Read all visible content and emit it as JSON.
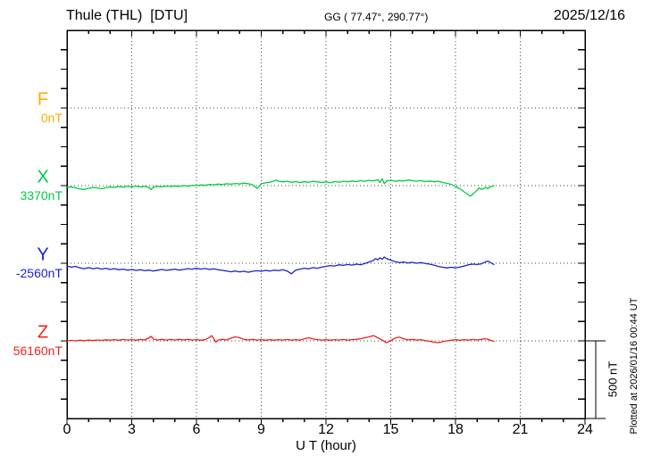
{
  "header": {
    "title": "Thule (THL)  [DTU]",
    "coordinates": "GG ( 77.47°, 290.77°)",
    "date": "2025/12/16"
  },
  "axis": {
    "xlabel": "U T (hour)",
    "x_major_ticks": [
      "0",
      "3",
      "6",
      "9",
      "12",
      "15",
      "18",
      "21",
      "24"
    ]
  },
  "scale_bar": {
    "label": "500 nT"
  },
  "plotted_note": "Plotted at 2026/01/16 00:44 UT",
  "chart_data": {
    "type": "line",
    "title": "Thule (THL) [DTU] magnetogram for 2025/12/16",
    "xlabel": "U T (hour)",
    "xlim": [
      0,
      24
    ],
    "x_major_tick_step": 3,
    "x_minor_tick_step": 1,
    "grid": "dotted vertical lines every 3 h; dotted horizontal line at each component baseline",
    "scale_bar_nT": 500,
    "nT_per_division": 125,
    "data_end_hour": 19.8,
    "components": [
      {
        "name": "F",
        "baseline_label": "0nT",
        "baseline_nT": 0,
        "color": "#ffaa00",
        "points": []
      },
      {
        "name": "X",
        "baseline_label": "3370nT",
        "baseline_nT": 3370,
        "color": "#00cc44",
        "points": [
          [
            0,
            -8
          ],
          [
            0.2,
            -10
          ],
          [
            0.4,
            -14
          ],
          [
            0.6,
            -22
          ],
          [
            0.8,
            -25
          ],
          [
            1,
            -18
          ],
          [
            1.2,
            -12
          ],
          [
            1.4,
            -15
          ],
          [
            1.6,
            -20
          ],
          [
            1.8,
            -14
          ],
          [
            2,
            -8
          ],
          [
            2.2,
            -12
          ],
          [
            2.4,
            -6
          ],
          [
            2.6,
            -10
          ],
          [
            2.8,
            -4
          ],
          [
            3,
            -8
          ],
          [
            3.2,
            -3
          ],
          [
            3.4,
            -9
          ],
          [
            3.6,
            -5
          ],
          [
            3.8,
            -12
          ],
          [
            3.9,
            -26
          ],
          [
            4,
            -10
          ],
          [
            4.2,
            -5
          ],
          [
            4.4,
            -8
          ],
          [
            4.6,
            -3
          ],
          [
            4.8,
            -6
          ],
          [
            5,
            -2
          ],
          [
            5.2,
            -6
          ],
          [
            5.4,
            0
          ],
          [
            5.6,
            -4
          ],
          [
            5.8,
            2
          ],
          [
            6,
            0
          ],
          [
            6.2,
            4
          ],
          [
            6.4,
            2
          ],
          [
            6.6,
            8
          ],
          [
            6.8,
            5
          ],
          [
            7,
            10
          ],
          [
            7.2,
            7
          ],
          [
            7.4,
            12
          ],
          [
            7.6,
            9
          ],
          [
            7.8,
            14
          ],
          [
            8,
            11
          ],
          [
            8.2,
            16
          ],
          [
            8.4,
            12
          ],
          [
            8.6,
            6
          ],
          [
            8.8,
            -18
          ],
          [
            8.9,
            -5
          ],
          [
            9,
            12
          ],
          [
            9.2,
            18
          ],
          [
            9.4,
            22
          ],
          [
            9.6,
            30
          ],
          [
            9.7,
            36
          ],
          [
            9.8,
            28
          ],
          [
            10,
            24
          ],
          [
            10.2,
            28
          ],
          [
            10.4,
            22
          ],
          [
            10.6,
            26
          ],
          [
            10.8,
            20
          ],
          [
            11,
            25
          ],
          [
            11.2,
            22
          ],
          [
            11.4,
            28
          ],
          [
            11.6,
            24
          ],
          [
            11.8,
            20
          ],
          [
            12,
            24
          ],
          [
            12.2,
            18
          ],
          [
            12.4,
            26
          ],
          [
            12.6,
            22
          ],
          [
            12.8,
            28
          ],
          [
            13,
            25
          ],
          [
            13.2,
            30
          ],
          [
            13.4,
            26
          ],
          [
            13.6,
            32
          ],
          [
            13.8,
            28
          ],
          [
            14,
            34
          ],
          [
            14.2,
            30
          ],
          [
            14.4,
            38
          ],
          [
            14.5,
            20
          ],
          [
            14.6,
            44
          ],
          [
            14.7,
            12
          ],
          [
            14.8,
            30
          ],
          [
            15,
            35
          ],
          [
            15.2,
            28
          ],
          [
            15.4,
            33
          ],
          [
            15.6,
            30
          ],
          [
            15.8,
            36
          ],
          [
            16,
            32
          ],
          [
            16.2,
            28
          ],
          [
            16.4,
            32
          ],
          [
            16.6,
            26
          ],
          [
            16.8,
            30
          ],
          [
            17,
            25
          ],
          [
            17.2,
            28
          ],
          [
            17.4,
            20
          ],
          [
            17.6,
            15
          ],
          [
            17.8,
            8
          ],
          [
            18,
            -5
          ],
          [
            18.2,
            -20
          ],
          [
            18.4,
            -40
          ],
          [
            18.6,
            -60
          ],
          [
            18.7,
            -68
          ],
          [
            18.8,
            -55
          ],
          [
            19,
            -30
          ],
          [
            19.1,
            -15
          ],
          [
            19.2,
            -25
          ],
          [
            19.4,
            -12
          ],
          [
            19.5,
            -20
          ],
          [
            19.6,
            -8
          ],
          [
            19.8,
            -2
          ]
        ]
      },
      {
        "name": "Y",
        "baseline_label": "-2560nT",
        "baseline_nT": -2560,
        "color": "#2222cc",
        "points": [
          [
            0,
            -18
          ],
          [
            0.2,
            -25
          ],
          [
            0.4,
            -20
          ],
          [
            0.6,
            -30
          ],
          [
            0.8,
            -35
          ],
          [
            1,
            -28
          ],
          [
            1.2,
            -36
          ],
          [
            1.4,
            -30
          ],
          [
            1.6,
            -38
          ],
          [
            1.8,
            -32
          ],
          [
            2,
            -40
          ],
          [
            2.2,
            -35
          ],
          [
            2.4,
            -42
          ],
          [
            2.6,
            -38
          ],
          [
            2.8,
            -45
          ],
          [
            3,
            -40
          ],
          [
            3.2,
            -46
          ],
          [
            3.4,
            -42
          ],
          [
            3.6,
            -48
          ],
          [
            3.8,
            -44
          ],
          [
            4,
            -50
          ],
          [
            4.2,
            -45
          ],
          [
            4.4,
            -40
          ],
          [
            4.6,
            -46
          ],
          [
            4.8,
            -42
          ],
          [
            5,
            -38
          ],
          [
            5.2,
            -44
          ],
          [
            5.4,
            -40
          ],
          [
            5.6,
            -35
          ],
          [
            5.8,
            -38
          ],
          [
            6,
            -33
          ],
          [
            6.2,
            -38
          ],
          [
            6.4,
            -34
          ],
          [
            6.6,
            -40
          ],
          [
            6.8,
            -36
          ],
          [
            7,
            -42
          ],
          [
            7.2,
            -46
          ],
          [
            7.4,
            -50
          ],
          [
            7.6,
            -55
          ],
          [
            7.8,
            -50
          ],
          [
            8,
            -56
          ],
          [
            8.2,
            -52
          ],
          [
            8.4,
            -58
          ],
          [
            8.6,
            -52
          ],
          [
            8.8,
            -48
          ],
          [
            9,
            -52
          ],
          [
            9.2,
            -46
          ],
          [
            9.4,
            -50
          ],
          [
            9.6,
            -44
          ],
          [
            9.8,
            -48
          ],
          [
            10,
            -42
          ],
          [
            10.2,
            -50
          ],
          [
            10.4,
            -68
          ],
          [
            10.5,
            -55
          ],
          [
            10.6,
            -45
          ],
          [
            10.8,
            -38
          ],
          [
            11,
            -32
          ],
          [
            11.2,
            -36
          ],
          [
            11.4,
            -28
          ],
          [
            11.6,
            -32
          ],
          [
            11.8,
            -25
          ],
          [
            12,
            -20
          ],
          [
            12.2,
            -15
          ],
          [
            12.4,
            -18
          ],
          [
            12.6,
            -10
          ],
          [
            12.8,
            -14
          ],
          [
            13,
            -8
          ],
          [
            13.2,
            -12
          ],
          [
            13.4,
            -6
          ],
          [
            13.6,
            -10
          ],
          [
            13.8,
            -2
          ],
          [
            14,
            8
          ],
          [
            14.2,
            18
          ],
          [
            14.3,
            30
          ],
          [
            14.4,
            22
          ],
          [
            14.5,
            35
          ],
          [
            14.6,
            25
          ],
          [
            14.7,
            40
          ],
          [
            14.8,
            30
          ],
          [
            15,
            20
          ],
          [
            15.2,
            10
          ],
          [
            15.4,
            4
          ],
          [
            15.6,
            8
          ],
          [
            15.8,
            2
          ],
          [
            16,
            6
          ],
          [
            16.2,
            0
          ],
          [
            16.4,
            4
          ],
          [
            16.6,
            -2
          ],
          [
            16.8,
            -6
          ],
          [
            17,
            -12
          ],
          [
            17.2,
            -20
          ],
          [
            17.4,
            -26
          ],
          [
            17.6,
            -30
          ],
          [
            17.8,
            -26
          ],
          [
            18,
            -30
          ],
          [
            18.2,
            -24
          ],
          [
            18.4,
            -18
          ],
          [
            18.6,
            -10
          ],
          [
            18.8,
            -6
          ],
          [
            19,
            -8
          ],
          [
            19.2,
            -4
          ],
          [
            19.4,
            10
          ],
          [
            19.5,
            14
          ],
          [
            19.6,
            6
          ],
          [
            19.8,
            -10
          ]
        ]
      },
      {
        "name": "Z",
        "baseline_label": "56160nT",
        "baseline_nT": 56160,
        "color": "#ee2222",
        "points": [
          [
            0,
            0
          ],
          [
            0.2,
            3
          ],
          [
            0.4,
            0
          ],
          [
            0.6,
            4
          ],
          [
            0.8,
            1
          ],
          [
            1,
            5
          ],
          [
            1.2,
            2
          ],
          [
            1.4,
            6
          ],
          [
            1.6,
            3
          ],
          [
            1.8,
            7
          ],
          [
            2,
            4
          ],
          [
            2.2,
            8
          ],
          [
            2.4,
            4
          ],
          [
            2.6,
            9
          ],
          [
            2.8,
            5
          ],
          [
            3,
            8
          ],
          [
            3.2,
            4
          ],
          [
            3.4,
            9
          ],
          [
            3.6,
            6
          ],
          [
            3.8,
            20
          ],
          [
            3.9,
            28
          ],
          [
            4,
            12
          ],
          [
            4.2,
            6
          ],
          [
            4.4,
            10
          ],
          [
            4.6,
            5
          ],
          [
            4.8,
            9
          ],
          [
            5,
            5
          ],
          [
            5.2,
            10
          ],
          [
            5.4,
            6
          ],
          [
            5.6,
            10
          ],
          [
            5.8,
            5
          ],
          [
            6,
            8
          ],
          [
            6.2,
            4
          ],
          [
            6.4,
            8
          ],
          [
            6.6,
            22
          ],
          [
            6.7,
            34
          ],
          [
            6.8,
            15
          ],
          [
            6.9,
            -8
          ],
          [
            7,
            5
          ],
          [
            7.2,
            10
          ],
          [
            7.4,
            6
          ],
          [
            7.6,
            18
          ],
          [
            7.8,
            26
          ],
          [
            8,
            20
          ],
          [
            8.2,
            10
          ],
          [
            8.4,
            6
          ],
          [
            8.6,
            10
          ],
          [
            8.8,
            5
          ],
          [
            9,
            8
          ],
          [
            9.2,
            4
          ],
          [
            9.4,
            8
          ],
          [
            9.6,
            4
          ],
          [
            9.8,
            8
          ],
          [
            10,
            5
          ],
          [
            10.2,
            9
          ],
          [
            10.4,
            5
          ],
          [
            10.6,
            8
          ],
          [
            10.8,
            4
          ],
          [
            11,
            14
          ],
          [
            11.2,
            20
          ],
          [
            11.4,
            12
          ],
          [
            11.6,
            8
          ],
          [
            11.8,
            5
          ],
          [
            12,
            8
          ],
          [
            12.2,
            4
          ],
          [
            12.4,
            8
          ],
          [
            12.6,
            5
          ],
          [
            12.8,
            9
          ],
          [
            13,
            5
          ],
          [
            13.2,
            8
          ],
          [
            13.4,
            10
          ],
          [
            13.6,
            14
          ],
          [
            13.8,
            20
          ],
          [
            14,
            26
          ],
          [
            14.2,
            34
          ],
          [
            14.4,
            20
          ],
          [
            14.6,
            5
          ],
          [
            14.8,
            -12
          ],
          [
            15,
            2
          ],
          [
            15.2,
            18
          ],
          [
            15.4,
            24
          ],
          [
            15.6,
            14
          ],
          [
            15.8,
            6
          ],
          [
            16,
            10
          ],
          [
            16.2,
            5
          ],
          [
            16.4,
            8
          ],
          [
            16.6,
            2
          ],
          [
            16.8,
            -3
          ],
          [
            17,
            -8
          ],
          [
            17.2,
            -12
          ],
          [
            17.4,
            -5
          ],
          [
            17.6,
            0
          ],
          [
            17.8,
            4
          ],
          [
            18,
            8
          ],
          [
            18.2,
            4
          ],
          [
            18.4,
            8
          ],
          [
            18.6,
            5
          ],
          [
            18.8,
            9
          ],
          [
            19,
            6
          ],
          [
            19.2,
            10
          ],
          [
            19.4,
            14
          ],
          [
            19.5,
            10
          ],
          [
            19.6,
            5
          ],
          [
            19.8,
            -4
          ]
        ]
      }
    ]
  }
}
